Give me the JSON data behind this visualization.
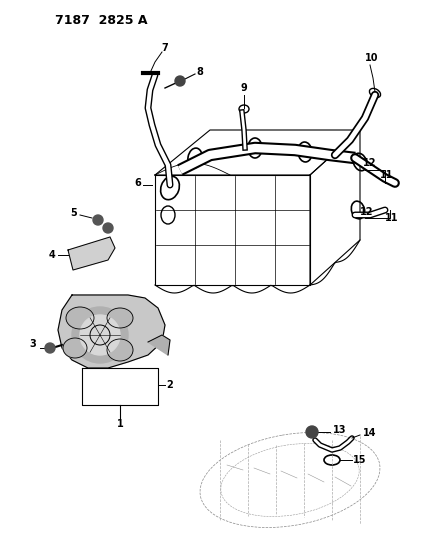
{
  "title": "7187  2825 A",
  "title_fontsize": 9,
  "background_color": "#ffffff",
  "label_fontsize": 7,
  "label_fontweight": "bold"
}
